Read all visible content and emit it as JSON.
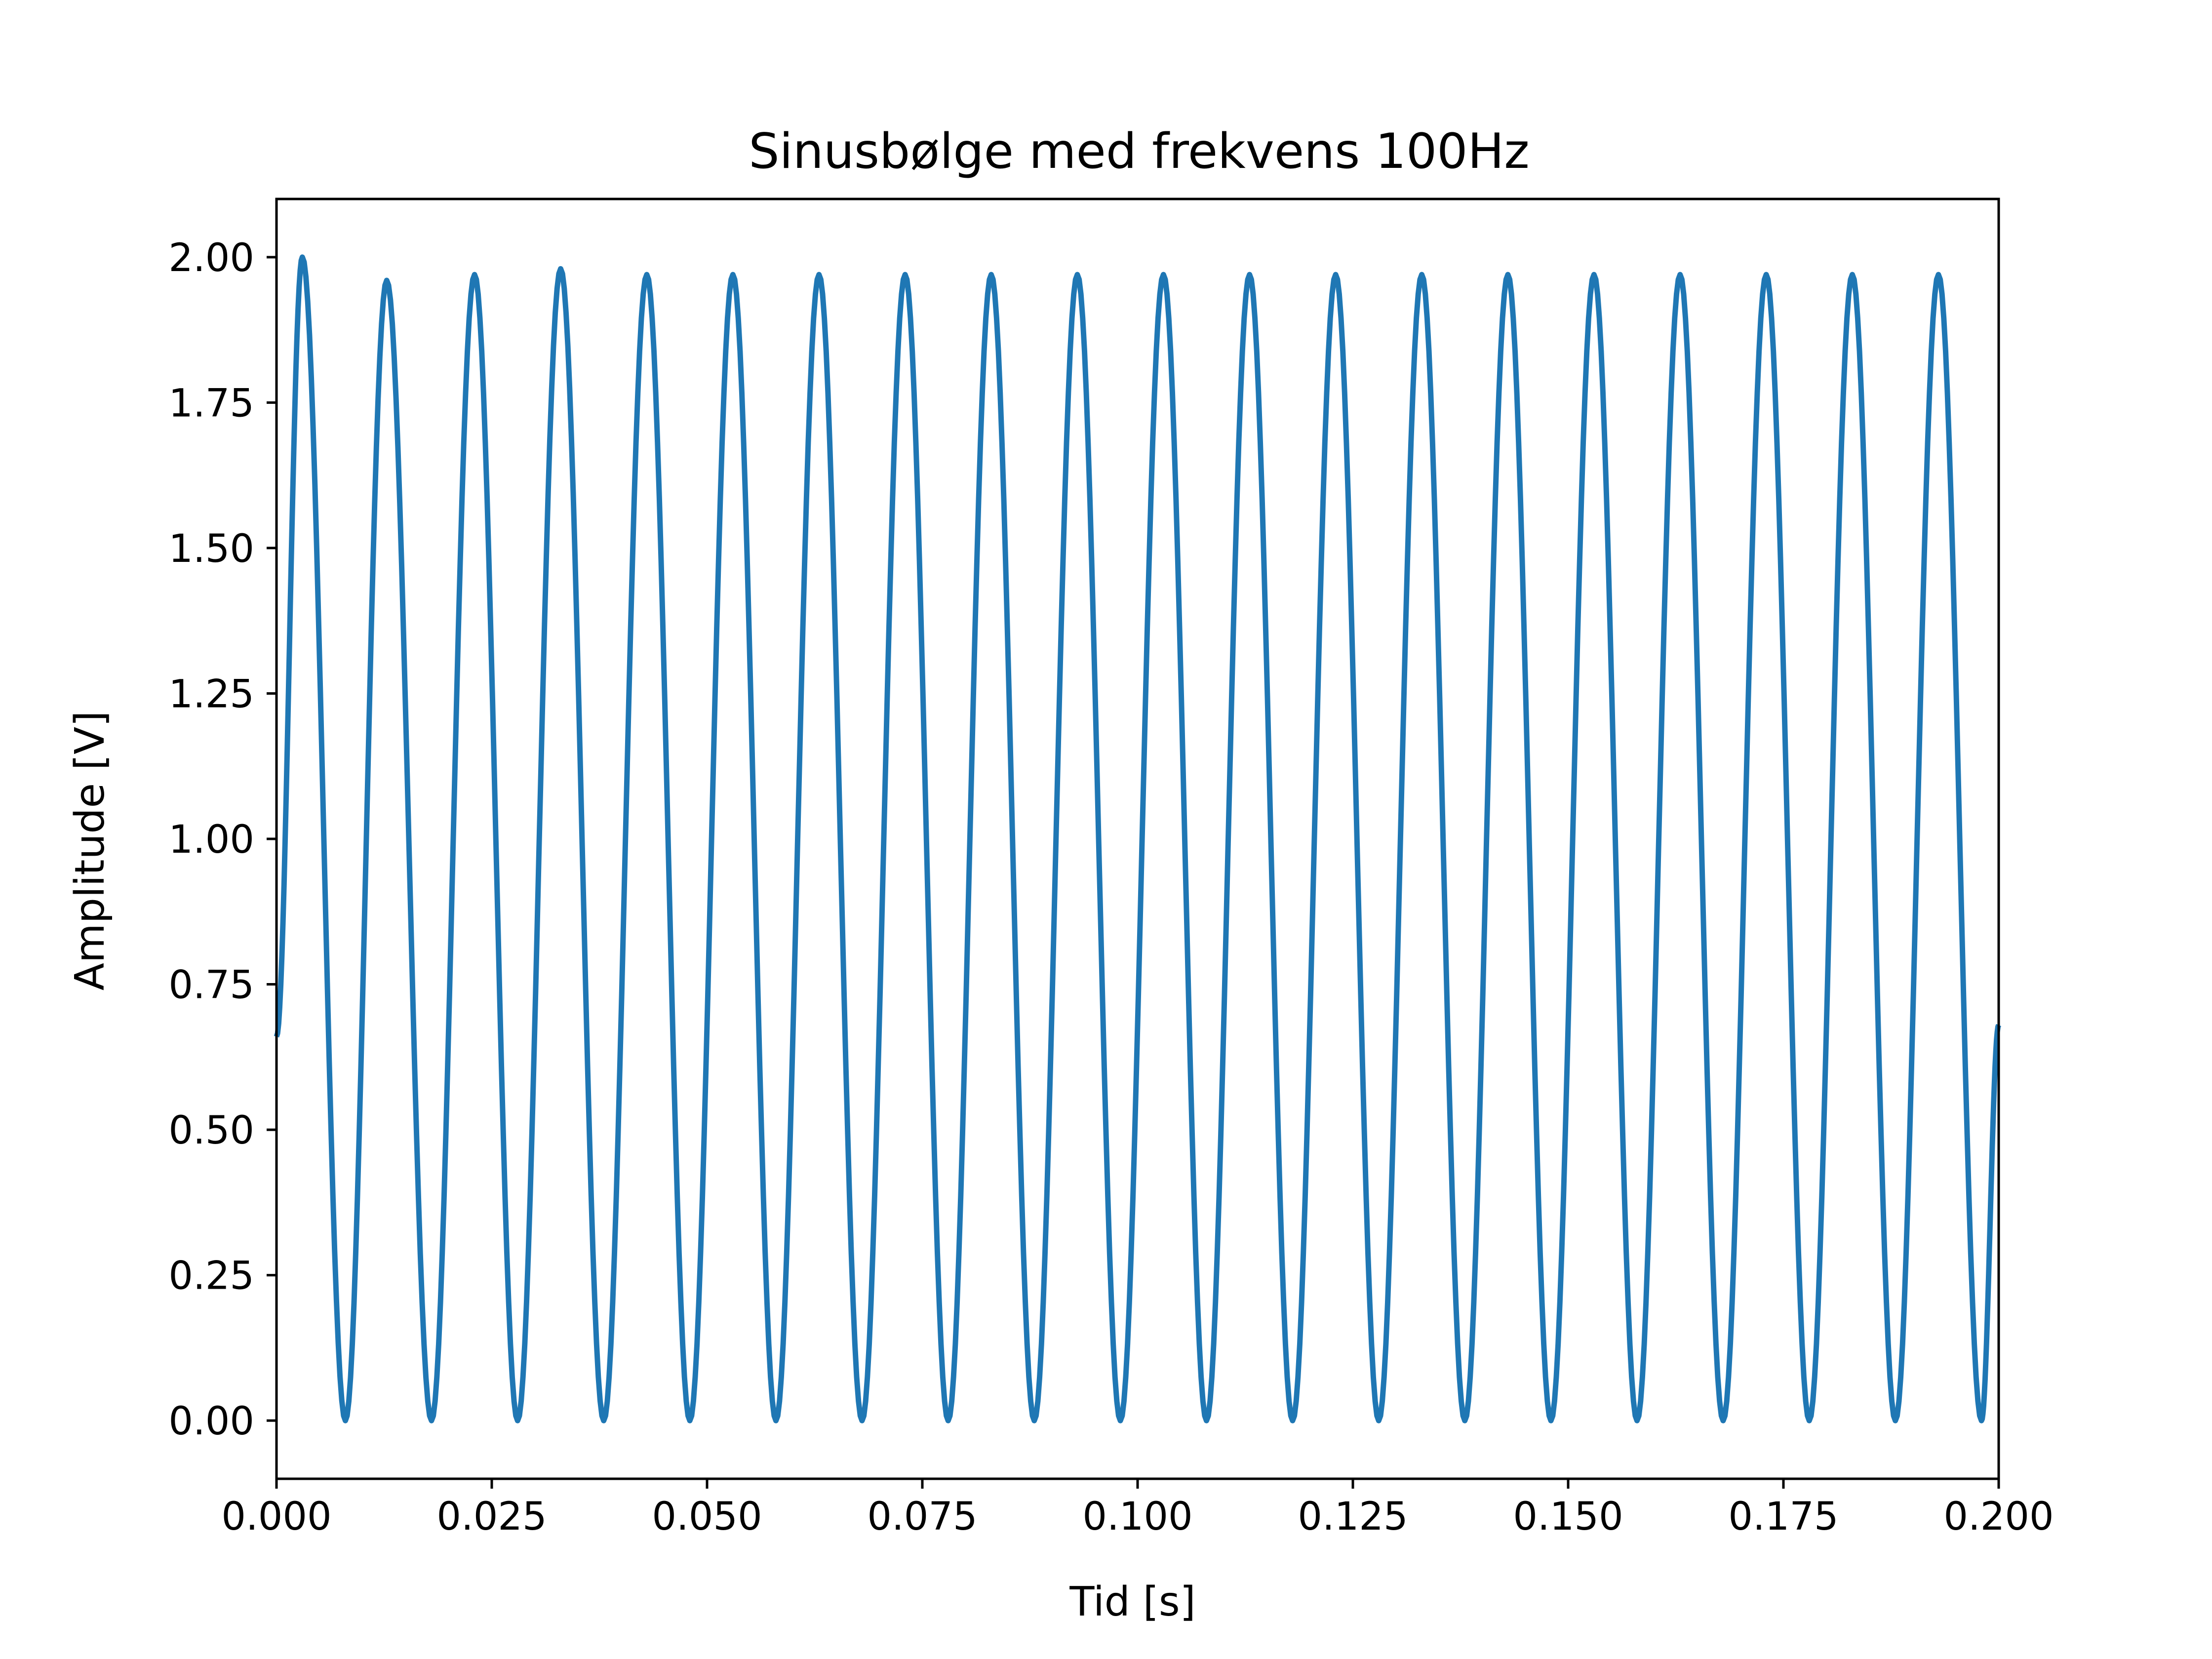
{
  "chart_data": {
    "type": "line",
    "title": "Sinusbølge med frekvens 100Hz",
    "xlabel": "Tid [s]",
    "ylabel": "Amplitude [V]",
    "xlim": [
      0.0,
      0.2
    ],
    "ylim": [
      -0.1,
      2.1
    ],
    "xticks": [
      "0.000",
      "0.025",
      "0.050",
      "0.075",
      "0.100",
      "0.125",
      "0.150",
      "0.175",
      "0.200"
    ],
    "yticks": [
      "0.00",
      "0.25",
      "0.50",
      "0.75",
      "1.00",
      "1.25",
      "1.50",
      "1.75",
      "2.00"
    ],
    "grid": false,
    "legend": "none",
    "series": [
      {
        "color": "#1f77b4",
        "x": [
          0.0,
          0.003,
          0.008,
          0.0128,
          0.018,
          0.023,
          0.028,
          0.033,
          0.038,
          0.043,
          0.048,
          0.053,
          0.058,
          0.063,
          0.068,
          0.073,
          0.078,
          0.083,
          0.088,
          0.093,
          0.098,
          0.103,
          0.108,
          0.113,
          0.118,
          0.123,
          0.128,
          0.133,
          0.138,
          0.143,
          0.148,
          0.153,
          0.158,
          0.163,
          0.168,
          0.173,
          0.178,
          0.183,
          0.188,
          0.193,
          0.198,
          0.2
        ],
        "y": [
          0.66,
          2.0,
          0.0,
          1.96,
          0.0,
          1.97,
          0.0,
          1.98,
          0.0,
          1.97,
          0.0,
          1.97,
          0.0,
          1.97,
          0.0,
          1.97,
          0.0,
          1.97,
          0.0,
          1.97,
          0.0,
          1.97,
          0.0,
          1.97,
          0.0,
          1.97,
          0.0,
          1.97,
          0.0,
          1.97,
          0.0,
          1.97,
          0.0,
          1.97,
          0.0,
          1.97,
          0.0,
          1.97,
          0.0,
          1.97,
          0.0,
          0.68
        ]
      }
    ]
  }
}
